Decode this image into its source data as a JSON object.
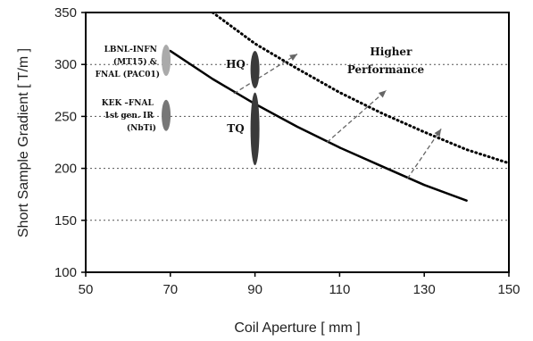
{
  "chart_data": {
    "type": "line",
    "title": "",
    "xlabel": "Coil Aperture [ mm ]",
    "ylabel": "Short Sample Gradient [ T/m ]",
    "xlim": [
      50,
      150
    ],
    "ylim": [
      100,
      350
    ],
    "x_ticks": [
      50,
      70,
      90,
      110,
      130,
      150
    ],
    "y_ticks": [
      100,
      150,
      200,
      250,
      300,
      350
    ],
    "grid": "horizontal dotted",
    "series": [
      {
        "style": "solid",
        "points": [
          [
            70,
            313
          ],
          [
            80,
            286
          ],
          [
            90,
            262
          ],
          [
            100,
            240
          ],
          [
            110,
            220
          ],
          [
            120,
            202
          ],
          [
            130,
            184
          ],
          [
            140,
            169
          ]
        ]
      },
      {
        "style": "dotted",
        "points": [
          [
            80,
            350
          ],
          [
            90,
            320
          ],
          [
            100,
            296
          ],
          [
            110,
            273
          ],
          [
            120,
            253
          ],
          [
            130,
            235
          ],
          [
            140,
            218
          ],
          [
            150,
            205
          ]
        ]
      }
    ],
    "arrows": [
      {
        "from": [
          85,
          272
        ],
        "to": [
          100,
          310
        ]
      },
      {
        "from": [
          107,
          225
        ],
        "to": [
          121,
          275
        ]
      },
      {
        "from": [
          126,
          190
        ],
        "to": [
          134,
          238
        ]
      }
    ],
    "markers": [
      {
        "label": "HQ",
        "x": 90,
        "y": 295,
        "fill": "#3a3a3a",
        "ry_gt": 18
      },
      {
        "label": "TQ",
        "x": 90,
        "y": 238,
        "fill": "#3a3a3a",
        "ry_gt": 35
      },
      {
        "label": "LBNL-INFN (MT15) & FNAL (PAC01)",
        "x": 69,
        "y": 304,
        "fill": "#aaaaaa",
        "ry_gt": 15
      },
      {
        "label": "KEK -FNAL 1st gen. IR (NbTi)",
        "x": 69,
        "y": 251,
        "fill": "#777777",
        "ry_gt": 15
      }
    ],
    "annotations": {
      "hq": "HQ",
      "tq": "TQ",
      "lbnl": [
        "LBNL-INFN",
        "(MT15) &",
        "FNAL (PAC01)"
      ],
      "kek": [
        "KEK –FNAL",
        "1st gen. IR",
        "(NbTi)"
      ],
      "higher": [
        "Higher",
        "Performance"
      ]
    }
  }
}
